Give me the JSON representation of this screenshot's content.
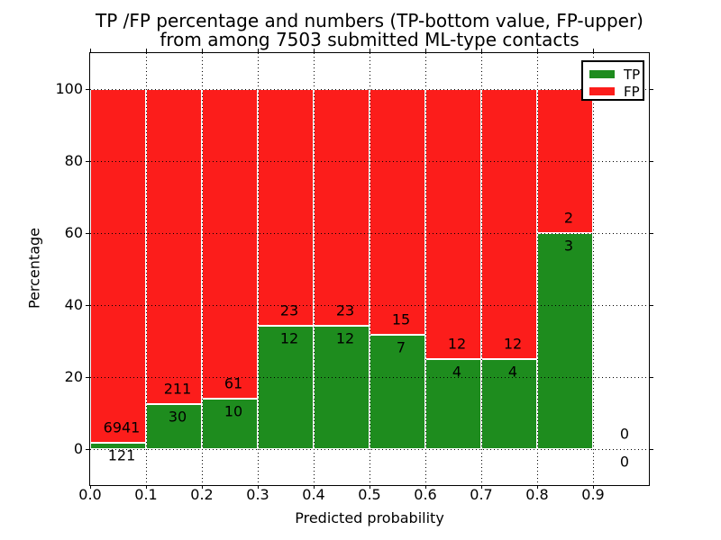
{
  "chart_data": {
    "type": "bar",
    "stacked": true,
    "title_line1": "TP /FP percentage and numbers (TP-bottom value, FP-upper)",
    "title_line2": "from among 7503 submitted ML-type contacts",
    "xlabel": "Predicted probability",
    "ylabel": "Percentage",
    "total_contacts_in_title": 7503,
    "xlim": [
      0.0,
      1.0
    ],
    "ylim": [
      -10,
      110
    ],
    "grid": "dotted",
    "legend_position": "upper right",
    "xtick_values": [
      0.0,
      0.1,
      0.2,
      0.3,
      0.4,
      0.5,
      0.6,
      0.7,
      0.8,
      0.9
    ],
    "xtick_labels": [
      "0.0",
      "0.1",
      "0.2",
      "0.3",
      "0.4",
      "0.5",
      "0.6",
      "0.7",
      "0.8",
      "0.9"
    ],
    "ytick_values": [
      0,
      20,
      40,
      60,
      80,
      100
    ],
    "bin_edges": [
      0.0,
      0.1,
      0.2,
      0.3,
      0.4,
      0.5,
      0.6,
      0.7,
      0.8,
      0.9,
      1.0
    ],
    "series": [
      {
        "name": "TP",
        "color": "#1e8c1e",
        "counts": [
          121,
          30,
          10,
          12,
          12,
          7,
          4,
          4,
          3,
          0
        ]
      },
      {
        "name": "FP",
        "color": "#fc1d1b",
        "counts": [
          6941,
          211,
          61,
          23,
          23,
          15,
          12,
          12,
          2,
          0
        ]
      }
    ],
    "tp_percent_by_bin": [
      1.7,
      12.4,
      14.1,
      34.3,
      34.3,
      31.8,
      25.0,
      25.0,
      60.0,
      0.0
    ],
    "legend": {
      "entries": [
        {
          "label": "TP",
          "color": "#1e8c1e"
        },
        {
          "label": "FP",
          "color": "#fc1d1b"
        }
      ]
    }
  }
}
